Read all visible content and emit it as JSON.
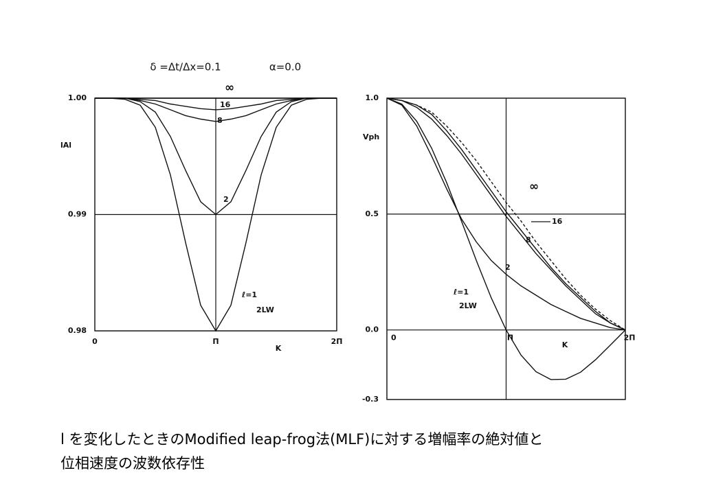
{
  "chart_data": [
    {
      "type": "line",
      "title": "δ =Δt/Δx=0.1",
      "subtitle": "α=0.0",
      "ylabel": "lAl",
      "xlabel": "K",
      "x": [
        0,
        0.3927,
        0.7854,
        1.1781,
        1.5708,
        1.9635,
        2.3562,
        2.7489,
        3.1416,
        3.5343,
        3.927,
        4.3197,
        4.7124,
        5.1051,
        5.4978,
        5.8905,
        6.2832
      ],
      "xlim": [
        0,
        6.2832
      ],
      "xticks": [
        0,
        {
          "value": 3.1416,
          "label": "Π"
        },
        {
          "value": 6.2832,
          "label": "2Π"
        }
      ],
      "ylim": [
        0.98,
        1.0
      ],
      "yticks": [
        0.98,
        0.99,
        {
          "value": 1.0,
          "label": "1.00"
        }
      ],
      "grid": true,
      "annotations": [
        "2LW"
      ],
      "series": [
        {
          "name": "ℓ=1",
          "color": "#111111",
          "values": [
            1.0,
            1.0,
            0.9999,
            0.9994,
            0.9975,
            0.9934,
            0.9876,
            0.9822,
            0.98,
            0.9822,
            0.9876,
            0.9934,
            0.9975,
            0.9994,
            0.9999,
            1.0,
            1.0
          ]
        },
        {
          "name": "2",
          "color": "#111111",
          "values": [
            1.0,
            1.0,
            1.0,
            0.9997,
            0.9988,
            0.9967,
            0.9938,
            0.9911,
            0.99,
            0.9911,
            0.9938,
            0.9967,
            0.9988,
            0.9997,
            1.0,
            1.0,
            1.0
          ]
        },
        {
          "name": "8",
          "color": "#111111",
          "values": [
            1.0,
            1.0,
            1.0,
            0.9998,
            0.9995,
            0.999,
            0.9985,
            0.9982,
            0.998,
            0.9982,
            0.9985,
            0.999,
            0.9995,
            0.9998,
            1.0,
            1.0,
            1.0
          ]
        },
        {
          "name": "16",
          "color": "#111111",
          "values": [
            1.0,
            1.0,
            1.0,
            0.9999,
            0.9998,
            0.9995,
            0.9993,
            0.9991,
            0.999,
            0.9991,
            0.9993,
            0.9995,
            0.9998,
            0.9999,
            1.0,
            1.0,
            1.0
          ]
        },
        {
          "name": "∞",
          "color": "#111111",
          "values": [
            1.0,
            1.0,
            1.0,
            1.0,
            1.0,
            1.0,
            1.0,
            1.0,
            1.0,
            1.0,
            1.0,
            1.0,
            1.0,
            1.0,
            1.0,
            1.0,
            1.0
          ]
        }
      ]
    },
    {
      "type": "line",
      "ylabel": "Vph",
      "xlabel": "K",
      "x": [
        0,
        0.3927,
        0.7854,
        1.1781,
        1.5708,
        1.9635,
        2.3562,
        2.7489,
        3.1416,
        3.5343,
        3.927,
        4.3197,
        4.7124,
        5.1051,
        5.4978,
        5.8905,
        6.2832
      ],
      "xlim": [
        0,
        6.2832
      ],
      "xticks": [
        0,
        {
          "value": 3.1416,
          "label": "Π"
        },
        {
          "value": 6.2832,
          "label": "2Π"
        }
      ],
      "ylim": [
        -0.3,
        1.0
      ],
      "yticks": [
        -0.3,
        {
          "value": 0,
          "label": "0.0"
        },
        0.5,
        {
          "value": 1.0,
          "label": "1.0"
        }
      ],
      "grid": true,
      "annotations": [
        "2LW"
      ],
      "series": [
        {
          "name": "ℓ=1",
          "color": "#111111",
          "values": [
            1.0,
            0.9745,
            0.9003,
            0.7842,
            0.6366,
            0.4705,
            0.3001,
            0.1392,
            0,
            -0.1083,
            -0.1801,
            -0.2139,
            -0.2122,
            -0.182,
            -0.1286,
            -0.0649,
            0
          ]
        },
        {
          "name": "2",
          "color": "#111111",
          "values": [
            1.0,
            0.97,
            0.88,
            0.75,
            0.61,
            0.48,
            0.38,
            0.3,
            0.24,
            0.19,
            0.15,
            0.11,
            0.08,
            0.05,
            0.03,
            0.01,
            0
          ]
        },
        {
          "name": "8",
          "color": "#111111",
          "values": [
            1.0,
            0.99,
            0.96,
            0.91,
            0.84,
            0.76,
            0.67,
            0.58,
            0.49,
            0.41,
            0.33,
            0.26,
            0.19,
            0.13,
            0.07,
            0.03,
            0
          ]
        },
        {
          "name": "16",
          "color": "#111111",
          "values": [
            1.0,
            0.99,
            0.97,
            0.93,
            0.86,
            0.78,
            0.69,
            0.6,
            0.51,
            0.43,
            0.35,
            0.27,
            0.2,
            0.14,
            0.08,
            0.03,
            0
          ]
        },
        {
          "name": "∞",
          "color": "#111111",
          "dashed": true,
          "values": [
            1.0,
            0.99,
            0.97,
            0.94,
            0.88,
            0.81,
            0.73,
            0.64,
            0.55,
            0.47,
            0.38,
            0.3,
            0.22,
            0.15,
            0.09,
            0.04,
            0
          ]
        }
      ]
    }
  ],
  "caption": [
    "l を変化したときのModified leap-frog法(MLF)に対する増幅率の絶対値と",
    "位相速度の波数依存性"
  ]
}
